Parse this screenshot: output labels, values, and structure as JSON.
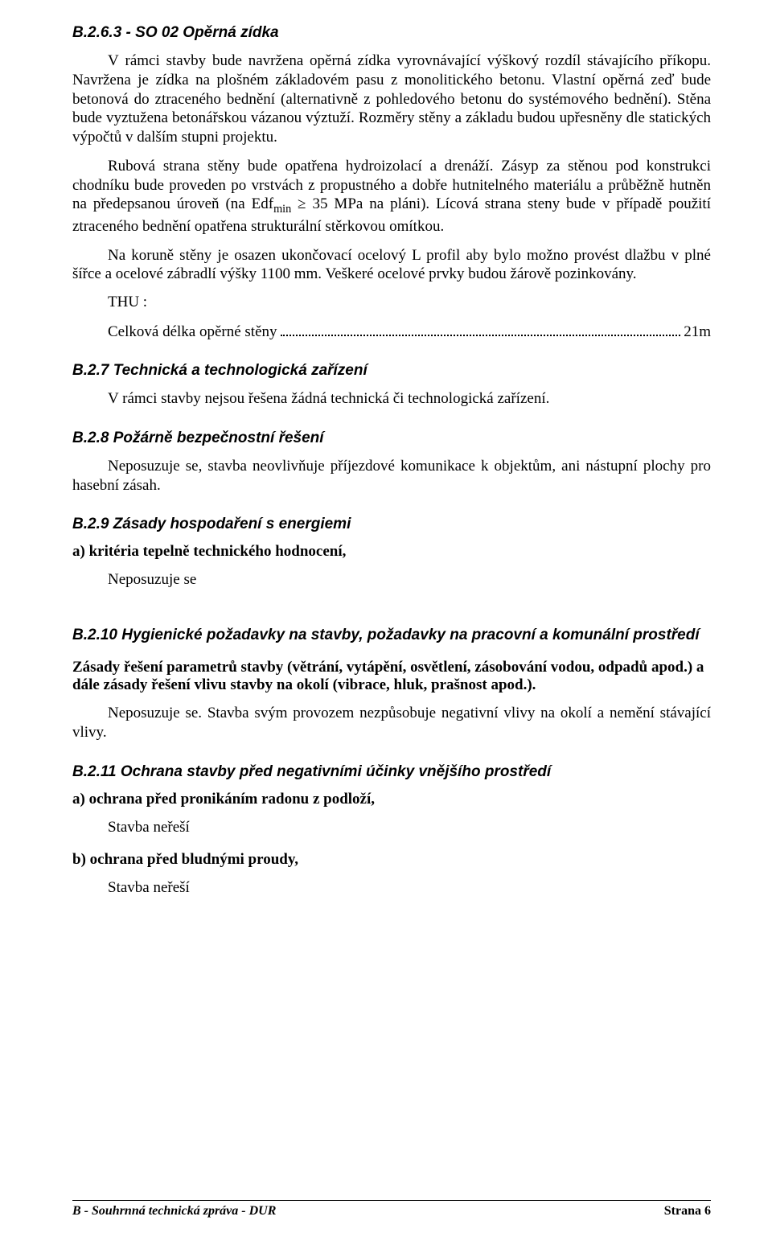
{
  "s263": {
    "heading": "B.2.6.3 - SO 02 Opěrná zídka",
    "p1": "V rámci stavby bude navržena opěrná zídka vyrovnávající výškový rozdíl stávajícího příkopu. Navržena je zídka na plošném základovém pasu z monolitického betonu. Vlastní opěrná zeď bude betonová do ztraceného bednění (alternativně z pohledového betonu do systémového bednění). Stěna bude vyztužena betonářskou vázanou výztuží. Rozměry stěny a základu budou upřesněny dle statických výpočtů v dalším stupni projektu.",
    "p2_html": "Rubová strana stěny bude opatřena hydroizolací  a drenáží. Zásyp za stěnou pod konstrukci chodníku bude proveden po vrstvách z propustného a dobře hutnitelného materiálu a průběžně hutněn na předepsanou úroveň (na Edf<span class=\"sub\">min</span> ≥ 35 MPa na pláni). Lícová strana steny bude v případě použití ztraceného bednění opatřena strukturální stěrkovou omítkou.",
    "p3": "Na koruně stěny je osazen ukončovací ocelový L profil aby bylo možno provést dlažbu v plné šířce a ocelové zábradlí výšky 1100 mm. Veškeré ocelové prvky budou žárově pozinkovány.",
    "thu": "THU :",
    "len_label": "Celková délka opěrné stěny",
    "len_value": "21m"
  },
  "s27": {
    "heading": "B.2.7 Technická a technologická zařízení",
    "p1": "V rámci stavby nejsou řešena žádná technická či technologická zařízení."
  },
  "s28": {
    "heading": "B.2.8 Požárně bezpečnostní řešení",
    "p1": "Neposuzuje se, stavba neovlivňuje příjezdové komunikace k objektům, ani nástupní plochy pro hasební zásah."
  },
  "s29": {
    "heading": "B.2.9 Zásady hospodaření s energiemi",
    "a_label": "a) kritéria tepelně technického hodnocení,",
    "a_text": "Neposuzuje se"
  },
  "s210": {
    "heading": "B.2.10 Hygienické požadavky na stavby, požadavky na pracovní a komunální prostředí",
    "subhead": "Zásady řešení parametrů stavby (větrání, vytápění, osvětlení, zásobování vodou, odpadů apod.) a dále zásady řešení vlivu stavby na okolí (vibrace, hluk, prašnost apod.).",
    "p1": "Neposuzuje se. Stavba svým provozem nezpůsobuje negativní vlivy na okolí a nemění stávající vlivy."
  },
  "s211": {
    "heading": "B.2.11 Ochrana stavby před negativními účinky vnějšího prostředí",
    "a_label": "a) ochrana před pronikáním radonu z podloží,",
    "a_text": "Stavba neřeší",
    "b_label": "b) ochrana před bludnými proudy,",
    "b_text": "Stavba neřeší"
  },
  "footer": {
    "left": "B - Souhrnná technická zpráva - DUR",
    "right": "Strana 6"
  }
}
